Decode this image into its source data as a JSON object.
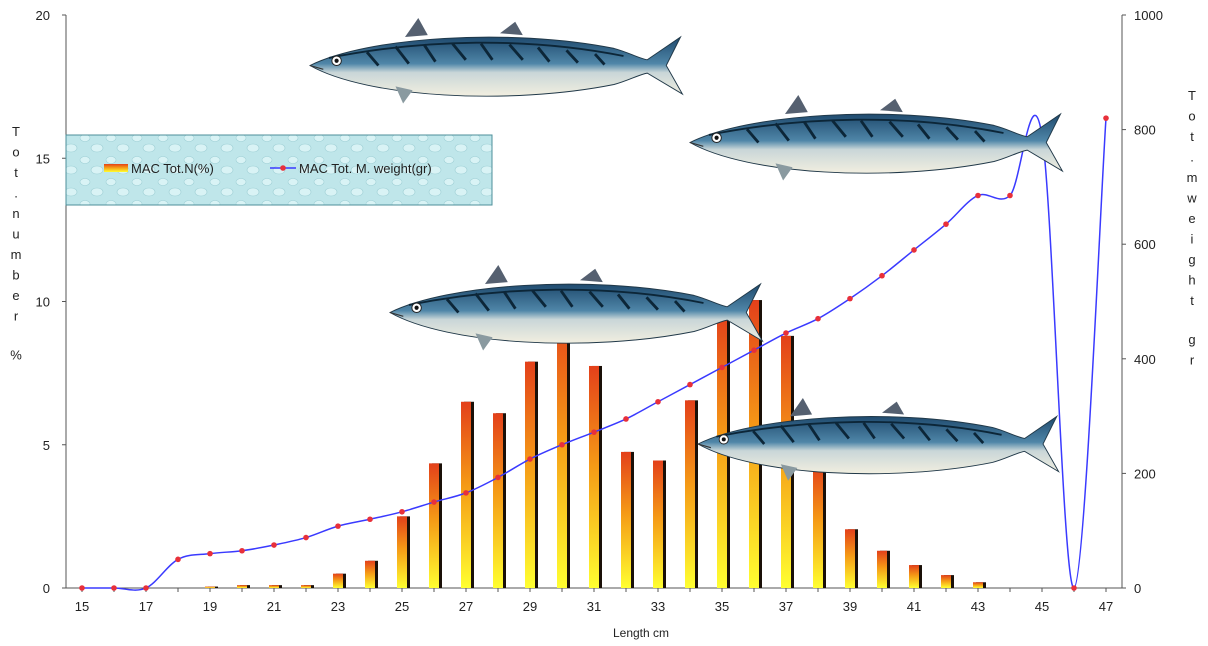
{
  "colors": {
    "bar_top": "#e3401a",
    "bar_mid": "#f59a16",
    "bar_bottom": "#ffff30",
    "line": "#3a3aff",
    "marker": "#e8303a",
    "legend_bg": "#bfe6ea",
    "axis": "#555555"
  },
  "chart_data": {
    "type": "bar",
    "x": [
      15,
      16,
      17,
      18,
      19,
      20,
      21,
      22,
      23,
      24,
      25,
      26,
      27,
      28,
      29,
      30,
      31,
      32,
      33,
      34,
      35,
      36,
      37,
      38,
      39,
      40,
      41,
      42,
      43,
      44,
      45,
      46,
      47
    ],
    "x_tick_labels": [
      "15",
      "17",
      "19",
      "21",
      "23",
      "25",
      "27",
      "29",
      "31",
      "33",
      "35",
      "37",
      "39",
      "41",
      "43",
      "45",
      "47"
    ],
    "xlabel": "Length cm",
    "ylabel_left": "Tot.number %",
    "ylabel_right": "Tot.mweight gr",
    "ylim_left": [
      0,
      20
    ],
    "ylim_right": [
      0,
      1000
    ],
    "y_left_ticks": [
      "0",
      "5",
      "10",
      "15",
      "20"
    ],
    "y_right_ticks": [
      "0",
      "200",
      "400",
      "600",
      "800",
      "1000"
    ],
    "legend_position": "upper-left",
    "grid": false,
    "series": [
      {
        "name": "MAC Tot.N(%)",
        "type": "bar",
        "axis": "left",
        "values": [
          0,
          0,
          0,
          0,
          0.05,
          0.1,
          0.1,
          0.1,
          0.5,
          0.95,
          2.5,
          4.35,
          6.5,
          6.1,
          7.9,
          9.6,
          7.75,
          4.75,
          4.45,
          6.55,
          9.6,
          10.05,
          8.8,
          4.3,
          2.05,
          1.3,
          0.8,
          0.45,
          0.2,
          0,
          0,
          0,
          0
        ]
      },
      {
        "name": "MAC Tot. M. weight(gr)",
        "type": "line",
        "axis": "right",
        "values": [
          0,
          0,
          0,
          50,
          60,
          65,
          75,
          88,
          108,
          120,
          133,
          150,
          166,
          193,
          225,
          250,
          272,
          295,
          325,
          355,
          385,
          415,
          445,
          470,
          505,
          545,
          590,
          635,
          685,
          685,
          790,
          0,
          820
        ]
      }
    ]
  }
}
